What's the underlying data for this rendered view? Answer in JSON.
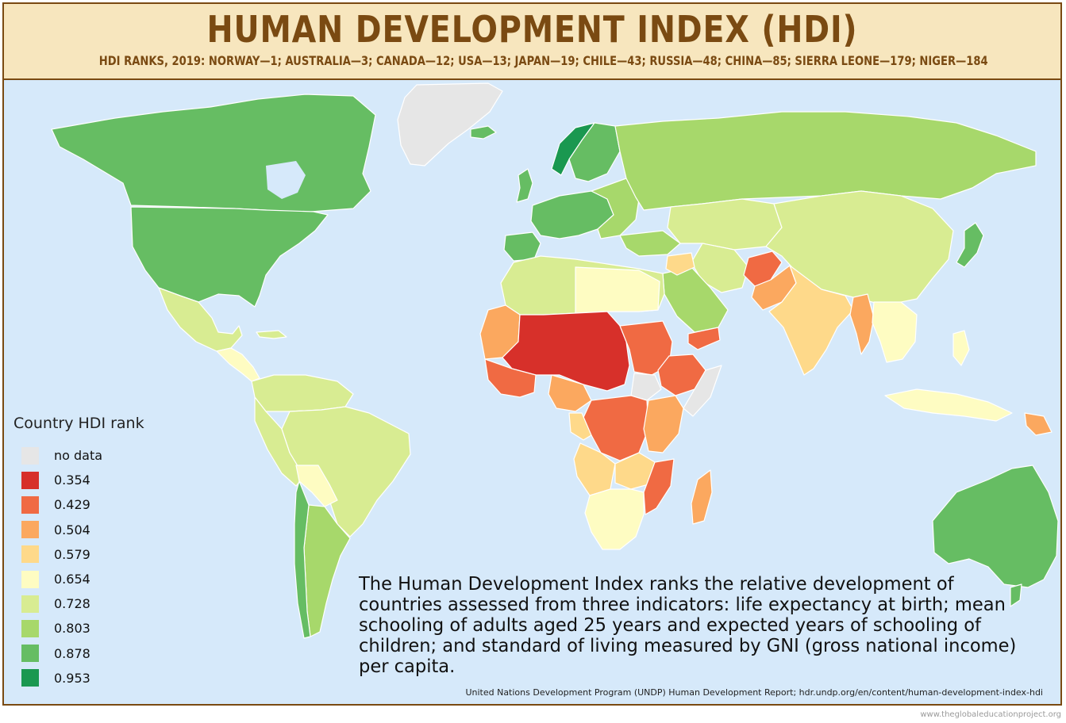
{
  "title": "HUMAN DEVELOPMENT INDEX (HDI)",
  "subtitle": "HDI RANKS, 2019: NORWAY—1; AUSTRALIA—3; CANADA—12; USA—13; JAPAN—19; CHILE—43; RUSSIA—48; CHINA—85; SIERRA LEONE—179; NIGER—184",
  "legend": {
    "title": "Country HDI rank",
    "items": [
      {
        "label": "no data",
        "color": "#e6e6e6"
      },
      {
        "label": "0.354",
        "color": "#d7302a"
      },
      {
        "label": "0.429",
        "color": "#f06a43"
      },
      {
        "label": "0.504",
        "color": "#fba85f"
      },
      {
        "label": "0.579",
        "color": "#fed98a"
      },
      {
        "label": "0.654",
        "color": "#fefcc2"
      },
      {
        "label": "0.728",
        "color": "#d8ec92"
      },
      {
        "label": "0.803",
        "color": "#a7d86b"
      },
      {
        "label": "0.878",
        "color": "#66bd63"
      },
      {
        "label": "0.953",
        "color": "#1a9850"
      }
    ]
  },
  "description": "The Human Development Index ranks the relative development of countries assessed from three indicators: life expectancy at birth; mean schooling of adults aged 25 years and expected years of schooling of children; and standard of living measured by GNI (gross national income) per capita.",
  "source": "United Nations Development Program (UNDP) Human  Development Report; hdr.undp.org/en/content/human-development-index-hdi",
  "credit": "www.theglobaleducationproject.org",
  "colors": {
    "ocean": "#d6e9fa",
    "header_bg": "#f7e6be",
    "title": "#7a4a12"
  }
}
